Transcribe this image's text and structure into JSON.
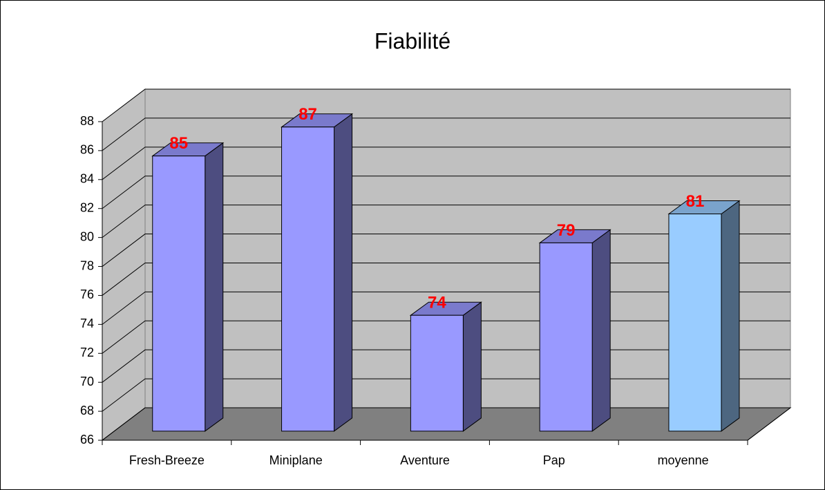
{
  "chart_data": {
    "type": "bar3d",
    "title": "Fiabilité",
    "categories": [
      "Fresh-Breeze",
      "Miniplane",
      "Aventure",
      "Pap",
      "moyenne"
    ],
    "values": [
      85,
      87,
      74,
      79,
      81
    ],
    "colors": [
      "#9999ff",
      "#9999ff",
      "#9999ff",
      "#9999ff",
      "#99ccff"
    ],
    "ylim": [
      66,
      88
    ],
    "yticks": [
      66,
      68,
      70,
      72,
      74,
      76,
      78,
      80,
      82,
      84,
      86,
      88
    ],
    "grid": true
  }
}
